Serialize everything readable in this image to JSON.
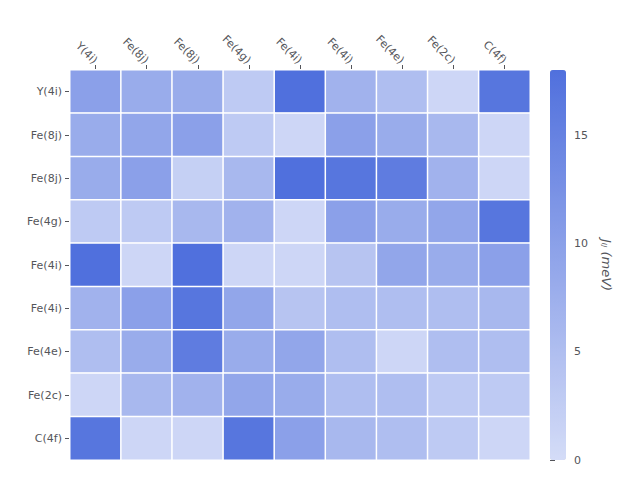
{
  "chart_data": {
    "type": "heatmap",
    "categories": [
      "Y(4i)",
      "Fe(8j)",
      "Fe(8j)",
      "Fe(4g)",
      "Fe(4i)",
      "Fe(4i)",
      "Fe(4e)",
      "Fe(2c)",
      "C(4f)"
    ],
    "values": [
      [
        10,
        8,
        8,
        3,
        18,
        7,
        5,
        1,
        17
      ],
      [
        8,
        9,
        10,
        3,
        1,
        10,
        8,
        6,
        1
      ],
      [
        8,
        10,
        2,
        6,
        18,
        17,
        16,
        7,
        1
      ],
      [
        3,
        3,
        6,
        7,
        1,
        10,
        8,
        9,
        17
      ],
      [
        18,
        1,
        18,
        1,
        1,
        4,
        9,
        8,
        10
      ],
      [
        7,
        10,
        17,
        9,
        4,
        5,
        5,
        5,
        6
      ],
      [
        5,
        8,
        16,
        8,
        9,
        5,
        1,
        5,
        5
      ],
      [
        1,
        6,
        7,
        9,
        8,
        5,
        5,
        3,
        3
      ],
      [
        17,
        1,
        1,
        17,
        10,
        6,
        5,
        3,
        1
      ]
    ],
    "colorbar_label": "Jᵢⱼ (meV)",
    "colorbar_range": [
      0,
      18
    ],
    "colorbar_ticks": [
      0,
      5,
      10,
      15
    ]
  }
}
